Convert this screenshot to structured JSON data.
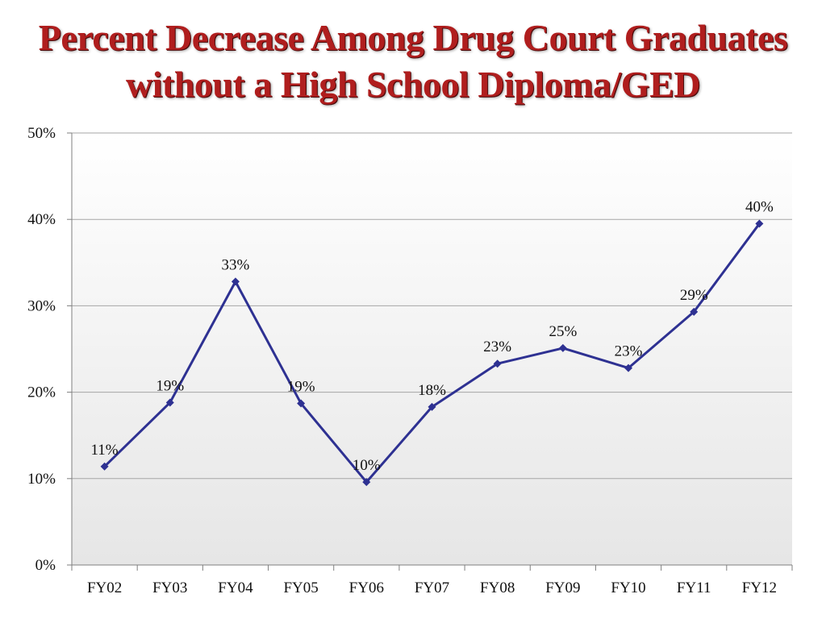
{
  "slide": {
    "title_line1": "Percent Decrease Among Drug Court Graduates",
    "title_line2": "without a High School Diploma/GED"
  },
  "colors": {
    "title": "#b01e1e",
    "series": "#2e3192",
    "grid": "#a6a6a6",
    "plot_gradient_top": "#ffffff",
    "plot_gradient_bottom": "#e6e6e6"
  },
  "chart_data": {
    "type": "line",
    "title": "Percent Decrease Among Drug Court Graduates without a High School Diploma/GED",
    "xlabel": "",
    "ylabel": "",
    "categories": [
      "FY02",
      "FY03",
      "FY04",
      "FY05",
      "FY06",
      "FY07",
      "FY08",
      "FY09",
      "FY10",
      "FY11",
      "FY12"
    ],
    "series": [
      {
        "values": [
          11.4,
          18.8,
          32.8,
          18.7,
          9.6,
          18.3,
          23.3,
          25.1,
          22.8,
          29.3,
          39.5
        ],
        "labels": [
          "11%",
          "19%",
          "33%",
          "19%",
          "10%",
          "18%",
          "23%",
          "25%",
          "23%",
          "29%",
          "40%"
        ],
        "marker": "diamond"
      }
    ],
    "ylim": [
      0,
      50
    ],
    "yticks": [
      "0%",
      "10%",
      "20%",
      "30%",
      "40%",
      "50%"
    ],
    "grid": true,
    "legend": "none"
  }
}
